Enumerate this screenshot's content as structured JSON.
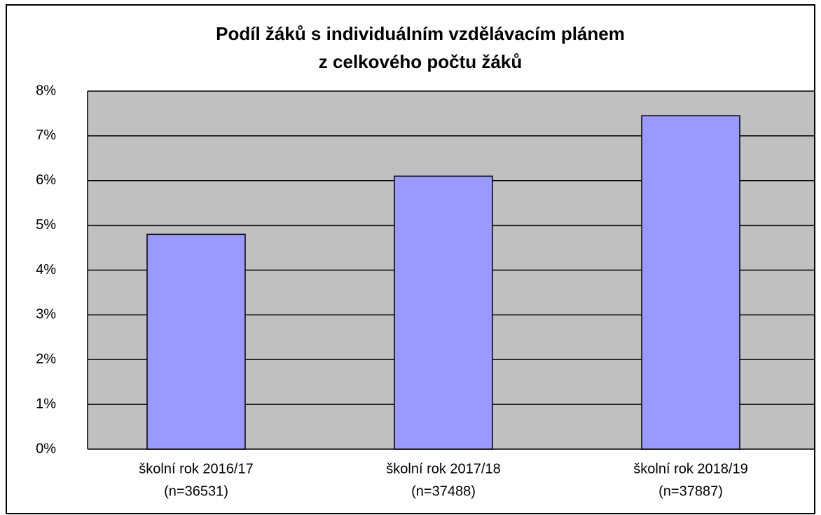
{
  "chart_data": {
    "type": "bar",
    "title": [
      "Podíl žáků s individuálním vzdělávacím plánem",
      "z celkového počtu žáků"
    ],
    "categories": [
      [
        "školní rok 2016/17",
        "(n=36531)"
      ],
      [
        "školní rok 2017/18",
        "(n=37488)"
      ],
      [
        "školní rok 2018/19",
        "(n=37887)"
      ]
    ],
    "values": [
      4.8,
      6.1,
      7.45
    ],
    "color": "#9999ff",
    "ylim": [
      0,
      8
    ],
    "yticks": [
      {
        "value": 0,
        "label": "0%"
      },
      {
        "value": 1,
        "label": "1%"
      },
      {
        "value": 2,
        "label": "2%"
      },
      {
        "value": 3,
        "label": "3%"
      },
      {
        "value": 4,
        "label": "4%"
      },
      {
        "value": 5,
        "label": "5%"
      },
      {
        "value": 6,
        "label": "6%"
      },
      {
        "value": 7,
        "label": "7%"
      },
      {
        "value": 8,
        "label": "8%"
      }
    ],
    "grid": true
  }
}
